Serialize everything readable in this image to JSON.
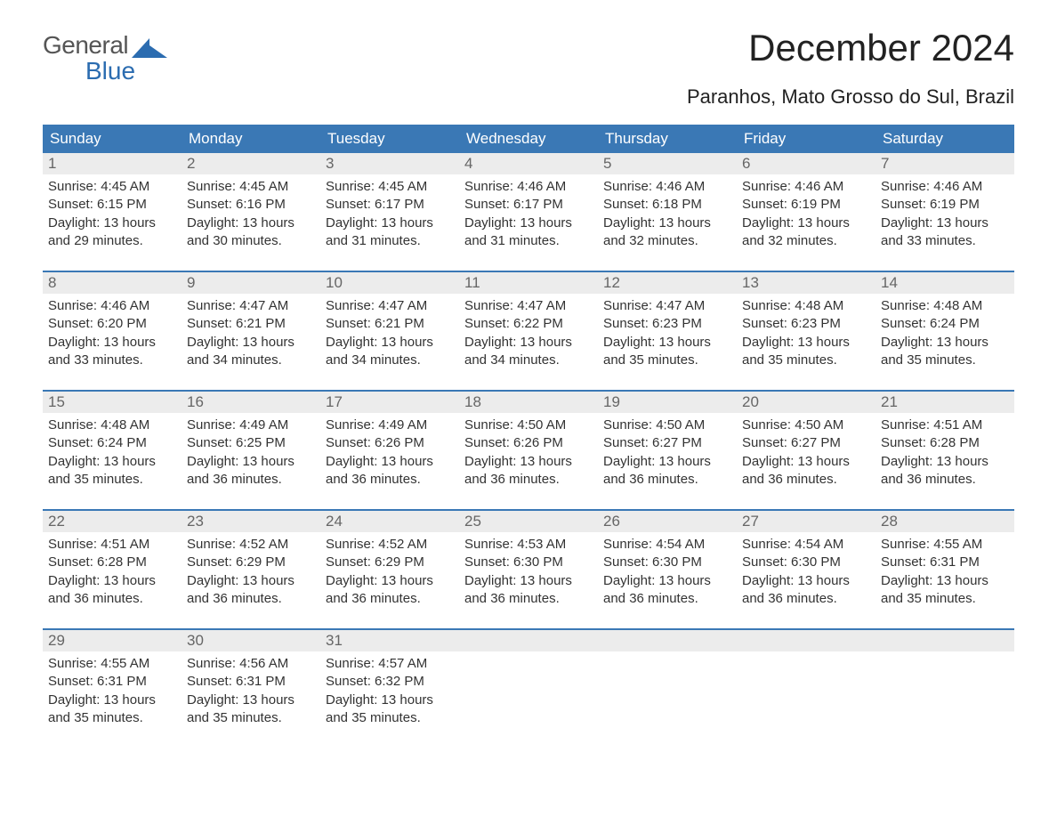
{
  "brand": {
    "word1": "General",
    "word2": "Blue",
    "text_color": "#555555",
    "accent_color": "#2b6cb0"
  },
  "title": "December 2024",
  "location": "Paranhos, Mato Grosso do Sul, Brazil",
  "colors": {
    "header_bg": "#3a78b5",
    "header_text": "#ffffff",
    "daynum_bg": "#ececec",
    "daynum_text": "#666666",
    "body_text": "#333333",
    "week_border": "#3a78b5",
    "background": "#ffffff"
  },
  "typography": {
    "title_fontsize": 42,
    "location_fontsize": 22,
    "dow_fontsize": 17,
    "daynum_fontsize": 17,
    "cell_fontsize": 15
  },
  "days_of_week": [
    "Sunday",
    "Monday",
    "Tuesday",
    "Wednesday",
    "Thursday",
    "Friday",
    "Saturday"
  ],
  "weeks": [
    [
      {
        "n": "1",
        "sunrise": "Sunrise: 4:45 AM",
        "sunset": "Sunset: 6:15 PM",
        "dl1": "Daylight: 13 hours",
        "dl2": "and 29 minutes."
      },
      {
        "n": "2",
        "sunrise": "Sunrise: 4:45 AM",
        "sunset": "Sunset: 6:16 PM",
        "dl1": "Daylight: 13 hours",
        "dl2": "and 30 minutes."
      },
      {
        "n": "3",
        "sunrise": "Sunrise: 4:45 AM",
        "sunset": "Sunset: 6:17 PM",
        "dl1": "Daylight: 13 hours",
        "dl2": "and 31 minutes."
      },
      {
        "n": "4",
        "sunrise": "Sunrise: 4:46 AM",
        "sunset": "Sunset: 6:17 PM",
        "dl1": "Daylight: 13 hours",
        "dl2": "and 31 minutes."
      },
      {
        "n": "5",
        "sunrise": "Sunrise: 4:46 AM",
        "sunset": "Sunset: 6:18 PM",
        "dl1": "Daylight: 13 hours",
        "dl2": "and 32 minutes."
      },
      {
        "n": "6",
        "sunrise": "Sunrise: 4:46 AM",
        "sunset": "Sunset: 6:19 PM",
        "dl1": "Daylight: 13 hours",
        "dl2": "and 32 minutes."
      },
      {
        "n": "7",
        "sunrise": "Sunrise: 4:46 AM",
        "sunset": "Sunset: 6:19 PM",
        "dl1": "Daylight: 13 hours",
        "dl2": "and 33 minutes."
      }
    ],
    [
      {
        "n": "8",
        "sunrise": "Sunrise: 4:46 AM",
        "sunset": "Sunset: 6:20 PM",
        "dl1": "Daylight: 13 hours",
        "dl2": "and 33 minutes."
      },
      {
        "n": "9",
        "sunrise": "Sunrise: 4:47 AM",
        "sunset": "Sunset: 6:21 PM",
        "dl1": "Daylight: 13 hours",
        "dl2": "and 34 minutes."
      },
      {
        "n": "10",
        "sunrise": "Sunrise: 4:47 AM",
        "sunset": "Sunset: 6:21 PM",
        "dl1": "Daylight: 13 hours",
        "dl2": "and 34 minutes."
      },
      {
        "n": "11",
        "sunrise": "Sunrise: 4:47 AM",
        "sunset": "Sunset: 6:22 PM",
        "dl1": "Daylight: 13 hours",
        "dl2": "and 34 minutes."
      },
      {
        "n": "12",
        "sunrise": "Sunrise: 4:47 AM",
        "sunset": "Sunset: 6:23 PM",
        "dl1": "Daylight: 13 hours",
        "dl2": "and 35 minutes."
      },
      {
        "n": "13",
        "sunrise": "Sunrise: 4:48 AM",
        "sunset": "Sunset: 6:23 PM",
        "dl1": "Daylight: 13 hours",
        "dl2": "and 35 minutes."
      },
      {
        "n": "14",
        "sunrise": "Sunrise: 4:48 AM",
        "sunset": "Sunset: 6:24 PM",
        "dl1": "Daylight: 13 hours",
        "dl2": "and 35 minutes."
      }
    ],
    [
      {
        "n": "15",
        "sunrise": "Sunrise: 4:48 AM",
        "sunset": "Sunset: 6:24 PM",
        "dl1": "Daylight: 13 hours",
        "dl2": "and 35 minutes."
      },
      {
        "n": "16",
        "sunrise": "Sunrise: 4:49 AM",
        "sunset": "Sunset: 6:25 PM",
        "dl1": "Daylight: 13 hours",
        "dl2": "and 36 minutes."
      },
      {
        "n": "17",
        "sunrise": "Sunrise: 4:49 AM",
        "sunset": "Sunset: 6:26 PM",
        "dl1": "Daylight: 13 hours",
        "dl2": "and 36 minutes."
      },
      {
        "n": "18",
        "sunrise": "Sunrise: 4:50 AM",
        "sunset": "Sunset: 6:26 PM",
        "dl1": "Daylight: 13 hours",
        "dl2": "and 36 minutes."
      },
      {
        "n": "19",
        "sunrise": "Sunrise: 4:50 AM",
        "sunset": "Sunset: 6:27 PM",
        "dl1": "Daylight: 13 hours",
        "dl2": "and 36 minutes."
      },
      {
        "n": "20",
        "sunrise": "Sunrise: 4:50 AM",
        "sunset": "Sunset: 6:27 PM",
        "dl1": "Daylight: 13 hours",
        "dl2": "and 36 minutes."
      },
      {
        "n": "21",
        "sunrise": "Sunrise: 4:51 AM",
        "sunset": "Sunset: 6:28 PM",
        "dl1": "Daylight: 13 hours",
        "dl2": "and 36 minutes."
      }
    ],
    [
      {
        "n": "22",
        "sunrise": "Sunrise: 4:51 AM",
        "sunset": "Sunset: 6:28 PM",
        "dl1": "Daylight: 13 hours",
        "dl2": "and 36 minutes."
      },
      {
        "n": "23",
        "sunrise": "Sunrise: 4:52 AM",
        "sunset": "Sunset: 6:29 PM",
        "dl1": "Daylight: 13 hours",
        "dl2": "and 36 minutes."
      },
      {
        "n": "24",
        "sunrise": "Sunrise: 4:52 AM",
        "sunset": "Sunset: 6:29 PM",
        "dl1": "Daylight: 13 hours",
        "dl2": "and 36 minutes."
      },
      {
        "n": "25",
        "sunrise": "Sunrise: 4:53 AM",
        "sunset": "Sunset: 6:30 PM",
        "dl1": "Daylight: 13 hours",
        "dl2": "and 36 minutes."
      },
      {
        "n": "26",
        "sunrise": "Sunrise: 4:54 AM",
        "sunset": "Sunset: 6:30 PM",
        "dl1": "Daylight: 13 hours",
        "dl2": "and 36 minutes."
      },
      {
        "n": "27",
        "sunrise": "Sunrise: 4:54 AM",
        "sunset": "Sunset: 6:30 PM",
        "dl1": "Daylight: 13 hours",
        "dl2": "and 36 minutes."
      },
      {
        "n": "28",
        "sunrise": "Sunrise: 4:55 AM",
        "sunset": "Sunset: 6:31 PM",
        "dl1": "Daylight: 13 hours",
        "dl2": "and 35 minutes."
      }
    ],
    [
      {
        "n": "29",
        "sunrise": "Sunrise: 4:55 AM",
        "sunset": "Sunset: 6:31 PM",
        "dl1": "Daylight: 13 hours",
        "dl2": "and 35 minutes."
      },
      {
        "n": "30",
        "sunrise": "Sunrise: 4:56 AM",
        "sunset": "Sunset: 6:31 PM",
        "dl1": "Daylight: 13 hours",
        "dl2": "and 35 minutes."
      },
      {
        "n": "31",
        "sunrise": "Sunrise: 4:57 AM",
        "sunset": "Sunset: 6:32 PM",
        "dl1": "Daylight: 13 hours",
        "dl2": "and 35 minutes."
      },
      {
        "n": "",
        "sunrise": "",
        "sunset": "",
        "dl1": "",
        "dl2": ""
      },
      {
        "n": "",
        "sunrise": "",
        "sunset": "",
        "dl1": "",
        "dl2": ""
      },
      {
        "n": "",
        "sunrise": "",
        "sunset": "",
        "dl1": "",
        "dl2": ""
      },
      {
        "n": "",
        "sunrise": "",
        "sunset": "",
        "dl1": "",
        "dl2": ""
      }
    ]
  ]
}
